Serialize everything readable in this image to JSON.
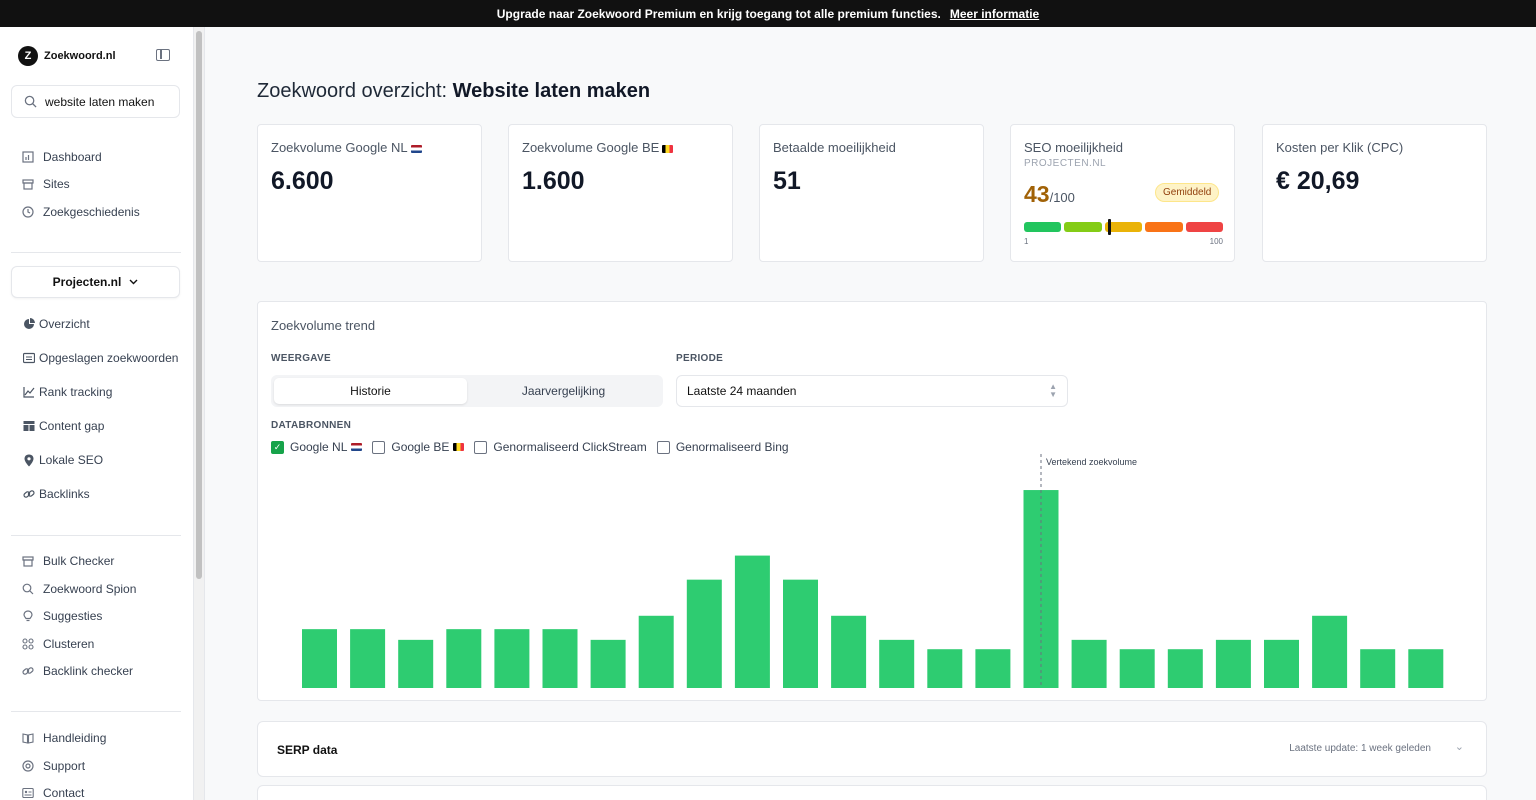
{
  "banner": {
    "text": "Upgrade naar Zoekwoord Premium en krijg toegang tot alle premium functies.",
    "link": "Meer informatie"
  },
  "sidebar": {
    "logo_mark": "Z",
    "logo_text": "Zoekwoord.nl",
    "search_value": "website laten maken",
    "nav_top": [
      {
        "label": "Dashboard",
        "icon": "chart-icon"
      },
      {
        "label": "Sites",
        "icon": "archive-icon"
      },
      {
        "label": "Zoekgeschiedenis",
        "icon": "clock-icon"
      }
    ],
    "project_select": "Projecten.nl",
    "nav_project": [
      {
        "label": "Overzicht",
        "icon": "pie-icon"
      },
      {
        "label": "Opgeslagen zoekwoorden",
        "icon": "list-icon"
      },
      {
        "label": "Rank tracking",
        "icon": "line-chart-icon"
      },
      {
        "label": "Content gap",
        "icon": "grid-icon"
      },
      {
        "label": "Lokale SEO",
        "icon": "pin-icon"
      },
      {
        "label": "Backlinks",
        "icon": "link-icon"
      }
    ],
    "nav_tools": [
      {
        "label": "Bulk Checker",
        "icon": "archive-icon"
      },
      {
        "label": "Zoekwoord Spion",
        "icon": "search-icon"
      },
      {
        "label": "Suggesties",
        "icon": "bulb-icon"
      },
      {
        "label": "Clusteren",
        "icon": "cluster-icon"
      },
      {
        "label": "Backlink checker",
        "icon": "link-icon"
      }
    ],
    "nav_help": [
      {
        "label": "Handleiding",
        "icon": "book-icon"
      },
      {
        "label": "Support",
        "icon": "lifebuoy-icon"
      },
      {
        "label": "Contact",
        "icon": "contact-icon"
      }
    ]
  },
  "main": {
    "title_prefix": "Zoekwoord overzicht:",
    "title_keyword": "Website laten maken"
  },
  "cards": {
    "google_nl": {
      "label": "Zoekvolume Google NL",
      "value": "6.600"
    },
    "google_be": {
      "label": "Zoekvolume Google BE",
      "value": "1.600"
    },
    "paid": {
      "label": "Betaalde moeilijkheid",
      "value": "51"
    },
    "seo": {
      "label": "SEO moeilijkheid",
      "sub": "PROJECTEN.NL",
      "score": "43",
      "max": "/100",
      "badge": "Gemiddeld",
      "range_min": "1",
      "range_max": "100",
      "level": 0.43
    },
    "cpc": {
      "label": "Kosten per Klik (CPC)",
      "value": "€ 20,69"
    }
  },
  "trend": {
    "title": "Zoekvolume trend",
    "weergave_label": "WEERGAVE",
    "tab_history": "Historie",
    "tab_year": "Jaarvergelijking",
    "periode_label": "PERIODE",
    "period_value": "Laatste 24 maanden",
    "sources_label": "DATABRONNEN",
    "sources": [
      {
        "label": "Google NL",
        "checked": true,
        "flag": "nl"
      },
      {
        "label": "Google BE",
        "checked": false,
        "flag": "be"
      },
      {
        "label": "Genormaliseerd ClickStream",
        "checked": false
      },
      {
        "label": "Genormaliseerd Bing",
        "checked": false
      }
    ],
    "annotation": "Vertekend zoekvolume"
  },
  "chart_data": {
    "type": "bar",
    "values": [
      4400,
      4400,
      3600,
      4400,
      4400,
      4400,
      3600,
      5400,
      8100,
      9900,
      8100,
      5400,
      3600,
      2900,
      2900,
      14800,
      3600,
      2900,
      2900,
      3600,
      3600,
      5400,
      2900,
      2900
    ],
    "ylim": [
      0,
      16000
    ],
    "grid": false,
    "color": "#2ecc71",
    "annotation": {
      "index": 15,
      "text": "Vertekend zoekvolume"
    }
  },
  "serp": {
    "title": "SERP data",
    "update": "Laatste update: 1 week geleden"
  },
  "colors": {
    "accent": "#2ecc71",
    "seo_segments": [
      "#22c55e",
      "#84cc16",
      "#eab308",
      "#f97316",
      "#ef4444"
    ]
  }
}
